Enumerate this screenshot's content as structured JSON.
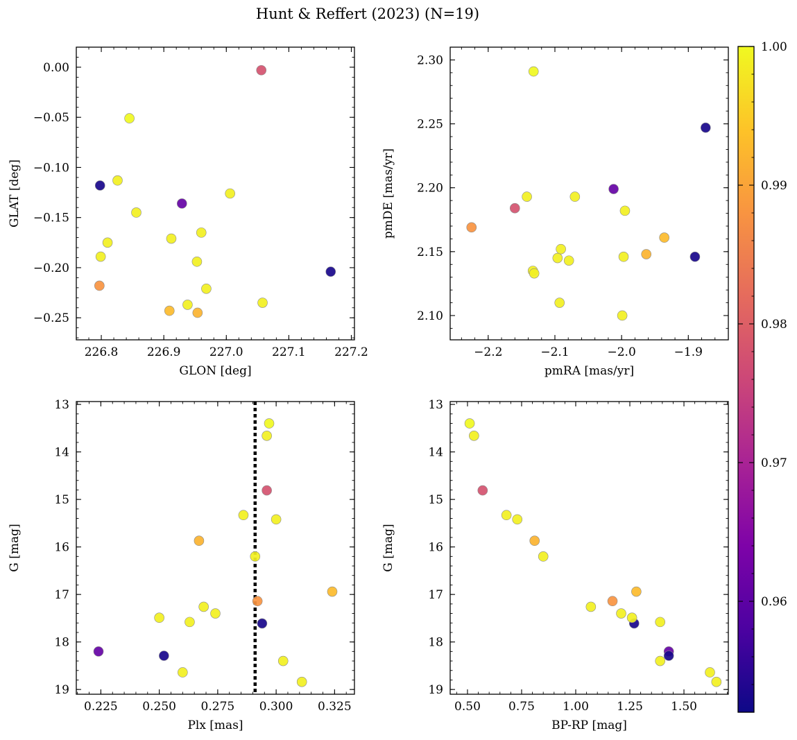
{
  "chart_data": {
    "title": "Hunt & Reffert (2023) (N=19)",
    "colorbar": {
      "colormap": "plasma",
      "range": [
        0.952,
        1.0
      ],
      "ticks": [
        "0.96",
        "0.97",
        "0.98",
        "0.99",
        "1.00"
      ]
    },
    "panels": [
      {
        "type": "scatter",
        "xlabel": "GLON [deg]",
        "ylabel": "GLAT [deg]",
        "xlim": [
          226.76,
          227.205
        ],
        "ylim": [
          -0.272,
          0.02
        ],
        "xticks": [
          "226.8",
          "226.9",
          "227.0",
          "227.1",
          "227.2"
        ],
        "yticks": [
          "0.00",
          "−0.05",
          "−0.10",
          "−0.15",
          "−0.20",
          "−0.25"
        ],
        "invert_y": false,
        "vline": null
      },
      {
        "type": "scatter",
        "xlabel": "pmRA [mas/yr]",
        "ylabel": "pmDE [mas/yr]",
        "xlim": [
          -2.257,
          -1.84
        ],
        "ylim": [
          2.081,
          2.31
        ],
        "xticks": [
          "−2.2",
          "−2.1",
          "−2.0",
          "−1.9"
        ],
        "yticks": [
          "2.10",
          "2.15",
          "2.20",
          "2.25",
          "2.30"
        ],
        "invert_y": false,
        "vline": null
      },
      {
        "type": "scatter",
        "xlabel": "Plx [mas]",
        "ylabel": "G [mag]",
        "xlim": [
          0.2145,
          0.3335
        ],
        "ylim": [
          19.1,
          12.94
        ],
        "xticks": [
          "0.225",
          "0.250",
          "0.275",
          "0.300",
          "0.325"
        ],
        "yticks": [
          "13",
          "14",
          "15",
          "16",
          "17",
          "18",
          "19"
        ],
        "invert_y": true,
        "vline": 0.291
      },
      {
        "type": "scatter",
        "xlabel": "BP-RP [mag]",
        "ylabel": "G [mag]",
        "xlim": [
          0.42,
          1.705
        ],
        "ylim": [
          19.1,
          12.94
        ],
        "xticks": [
          "0.50",
          "0.75",
          "1.00",
          "1.25",
          "1.50"
        ],
        "yticks": [
          "13",
          "14",
          "15",
          "16",
          "17",
          "18",
          "19"
        ],
        "invert_y": true,
        "vline": null
      }
    ],
    "stars": [
      {
        "glon": 227.056,
        "glat": -0.003,
        "pmra": -2.16,
        "pmde": 2.184,
        "plx": 0.296,
        "g": 14.81,
        "bprp": 0.57,
        "prob": 0.978
      },
      {
        "glon": 226.845,
        "glat": -0.051,
        "pmra": -2.132,
        "pmde": 2.291,
        "plx": 0.297,
        "g": 13.4,
        "bprp": 0.51,
        "prob": 1.0
      },
      {
        "glon": 226.798,
        "glat": -0.118,
        "pmra": -1.874,
        "pmde": 2.247,
        "plx": 0.294,
        "g": 17.61,
        "bprp": 1.27,
        "prob": 0.953
      },
      {
        "glon": 226.826,
        "glat": -0.113,
        "pmra": -2.142,
        "pmde": 2.193,
        "plx": 0.296,
        "g": 13.66,
        "bprp": 0.53,
        "prob": 0.999
      },
      {
        "glon": 226.929,
        "glat": -0.136,
        "pmra": -2.012,
        "pmde": 2.199,
        "plx": 0.224,
        "g": 18.2,
        "bprp": 1.43,
        "prob": 0.961
      },
      {
        "glon": 227.006,
        "glat": -0.126,
        "pmra": -2.07,
        "pmde": 2.193,
        "plx": 0.286,
        "g": 15.33,
        "bprp": 0.68,
        "prob": 0.999
      },
      {
        "glon": 226.856,
        "glat": -0.145,
        "pmra": -1.995,
        "pmde": 2.182,
        "plx": 0.3,
        "g": 15.42,
        "bprp": 0.73,
        "prob": 0.999
      },
      {
        "glon": 226.96,
        "glat": -0.165,
        "pmra": -2.096,
        "pmde": 2.145,
        "plx": 0.274,
        "g": 17.4,
        "bprp": 1.21,
        "prob": 0.999
      },
      {
        "glon": 226.912,
        "glat": -0.171,
        "pmra": -2.091,
        "pmde": 2.152,
        "plx": 0.25,
        "g": 17.49,
        "bprp": 1.26,
        "prob": 0.999
      },
      {
        "glon": 226.81,
        "glat": -0.175,
        "pmra": -2.079,
        "pmde": 2.143,
        "plx": 0.263,
        "g": 17.58,
        "bprp": 1.39,
        "prob": 0.999
      },
      {
        "glon": 226.799,
        "glat": -0.189,
        "pmra": -2.133,
        "pmde": 2.135,
        "plx": 0.269,
        "g": 17.26,
        "bprp": 1.07,
        "prob": 0.999
      },
      {
        "glon": 226.953,
        "glat": -0.194,
        "pmra": -2.131,
        "pmde": 2.133,
        "plx": 0.291,
        "g": 16.2,
        "bprp": 0.85,
        "prob": 0.999
      },
      {
        "glon": 227.167,
        "glat": -0.204,
        "pmra": -1.89,
        "pmde": 2.146,
        "plx": 0.252,
        "g": 18.29,
        "bprp": 1.43,
        "prob": 0.953
      },
      {
        "glon": 226.797,
        "glat": -0.218,
        "pmra": -2.225,
        "pmde": 2.169,
        "plx": 0.292,
        "g": 17.14,
        "bprp": 1.17,
        "prob": 0.988
      },
      {
        "glon": 226.968,
        "glat": -0.221,
        "pmra": -1.997,
        "pmde": 2.146,
        "plx": 0.303,
        "g": 18.4,
        "bprp": 1.39,
        "prob": 0.999
      },
      {
        "glon": 226.938,
        "glat": -0.237,
        "pmra": -2.093,
        "pmde": 2.11,
        "plx": 0.26,
        "g": 18.64,
        "bprp": 1.62,
        "prob": 0.999
      },
      {
        "glon": 227.058,
        "glat": -0.235,
        "pmra": -1.999,
        "pmde": 2.1,
        "plx": 0.311,
        "g": 18.84,
        "bprp": 1.65,
        "prob": 0.999
      },
      {
        "glon": 226.909,
        "glat": -0.243,
        "pmra": -1.936,
        "pmde": 2.161,
        "plx": 0.324,
        "g": 16.94,
        "bprp": 1.28,
        "prob": 0.993
      },
      {
        "glon": 226.954,
        "glat": -0.245,
        "pmra": -1.963,
        "pmde": 2.148,
        "plx": 0.267,
        "g": 15.87,
        "bprp": 0.81,
        "prob": 0.992
      }
    ]
  }
}
